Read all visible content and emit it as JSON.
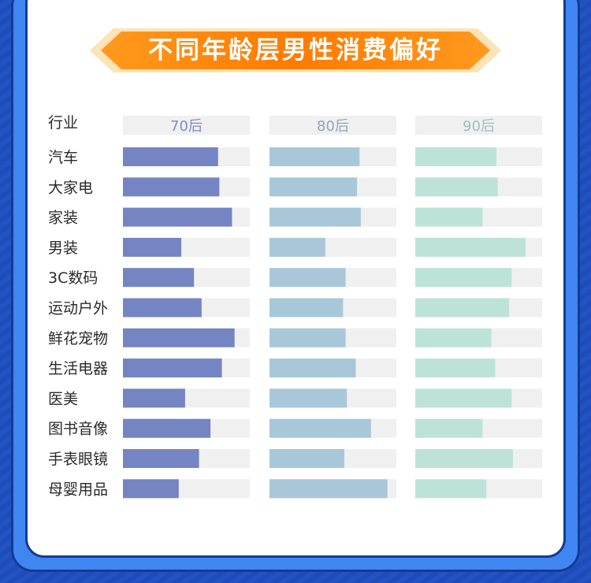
{
  "title": "不同年龄层男性消费偏好",
  "colors": {
    "series": [
      "#7585c3",
      "#a8c8d9",
      "#bde3d8"
    ],
    "headers": [
      "#7f8cc4",
      "#8fa7bc",
      "#9ebfbe"
    ],
    "track": "#f0f0f0",
    "text": "#2a2a2a"
  },
  "chart_data": {
    "type": "bar",
    "orientation": "horizontal",
    "category_header": "行业",
    "categories": [
      "汽车",
      "大家电",
      "家装",
      "男装",
      "3C数码",
      "运动户外",
      "鲜花宠物",
      "生活电器",
      "医美",
      "图书音像",
      "手表眼镜",
      "母婴用品"
    ],
    "series": [
      {
        "name": "70后",
        "values": [
          0.75,
          0.76,
          0.86,
          0.46,
          0.56,
          0.62,
          0.88,
          0.78,
          0.49,
          0.69,
          0.6,
          0.44
        ]
      },
      {
        "name": "80后",
        "values": [
          0.71,
          0.69,
          0.72,
          0.44,
          0.6,
          0.58,
          0.6,
          0.68,
          0.61,
          0.8,
          0.59,
          0.93
        ]
      },
      {
        "name": "90后",
        "values": [
          0.64,
          0.65,
          0.53,
          0.87,
          0.76,
          0.74,
          0.6,
          0.63,
          0.76,
          0.53,
          0.77,
          0.56
        ]
      }
    ],
    "xlim": [
      0,
      1
    ],
    "grid": false,
    "legend": "column headers"
  }
}
